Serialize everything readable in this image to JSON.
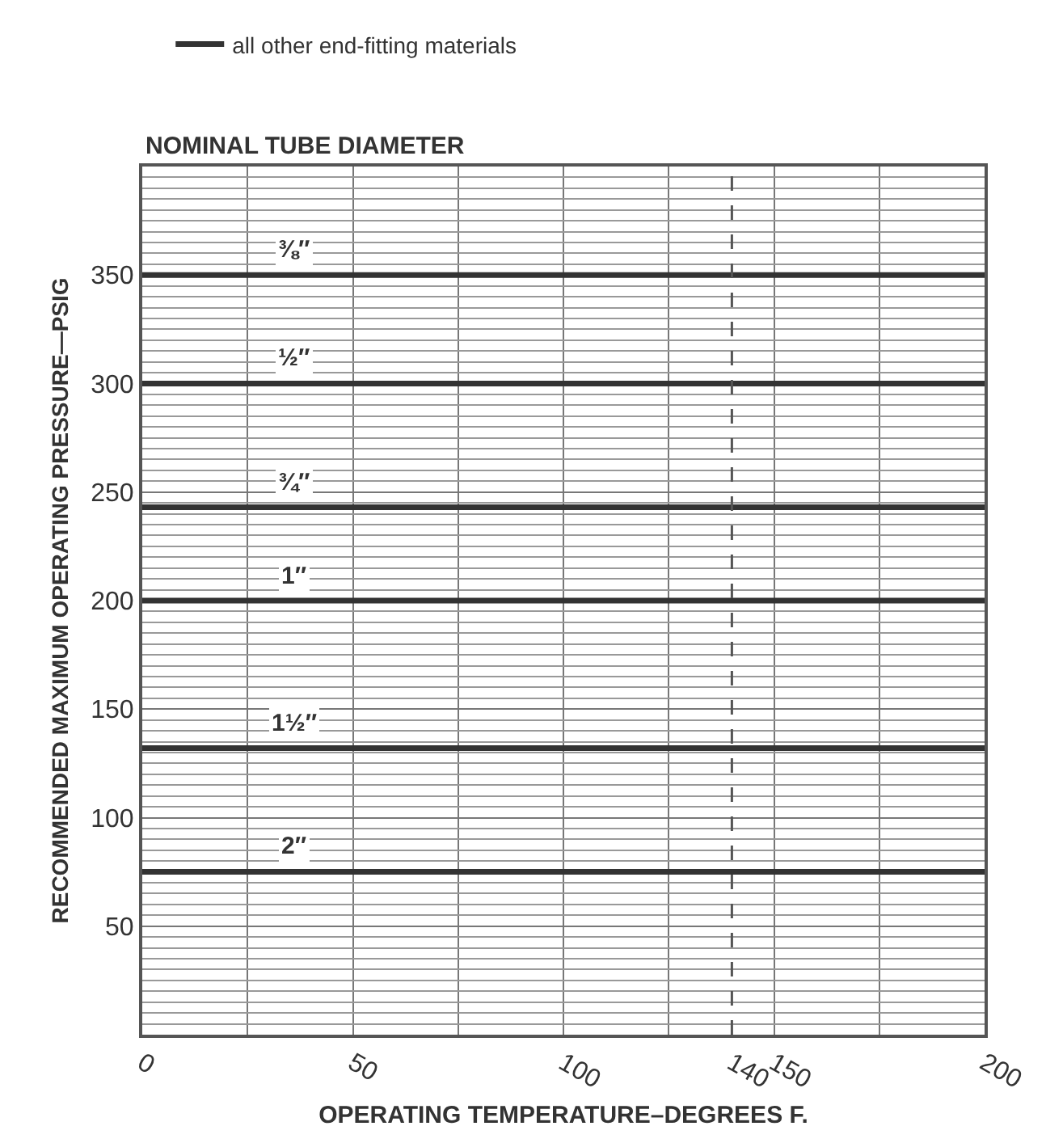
{
  "chart_data": {
    "type": "line",
    "title": "NOMINAL TUBE DIAMETER",
    "xlabel": "OPERATING TEMPERATURE–DEGREES F.",
    "ylabel": "RECOMMENDED MAXIMUM OPERATING PRESSURE—PSIG",
    "legend_title": "all other end-fitting materials",
    "legend": "top left",
    "x": [
      0,
      200
    ],
    "series": [
      {
        "name": "⅜″",
        "color": "#333333",
        "values": [
          350,
          350
        ]
      },
      {
        "name": "½″",
        "color": "#333333",
        "values": [
          300,
          300
        ]
      },
      {
        "name": "¾″",
        "color": "#333333",
        "values": [
          243,
          243
        ]
      },
      {
        "name": "1″",
        "color": "#333333",
        "values": [
          200,
          200
        ]
      },
      {
        "name": "1½″",
        "color": "#333333",
        "values": [
          132,
          132
        ]
      },
      {
        "name": "2″",
        "color": "#333333",
        "values": [
          75,
          75
        ]
      }
    ],
    "xlim": [
      0,
      200
    ],
    "xticks": [
      0,
      50,
      100,
      140,
      150,
      200
    ],
    "ylim": [
      0,
      400
    ],
    "yticks": [
      50,
      100,
      150,
      200,
      250,
      300,
      350
    ],
    "ref_lines": [
      {
        "axis": "x",
        "value": 140,
        "color": "#555555",
        "line_style": "dashed"
      }
    ],
    "grid": true,
    "marker": "none",
    "line_style": "solid"
  }
}
